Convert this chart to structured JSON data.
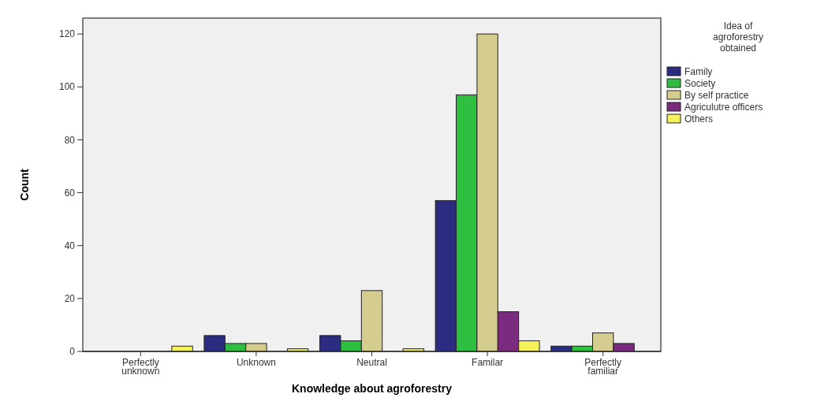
{
  "chart_data": {
    "type": "bar",
    "xlabel": "Knowledge about agroforestry",
    "ylabel": "Count",
    "legend_title": "Idea of agroforestry obtained",
    "categories": [
      "Perfectly unknown",
      "Unknown",
      "Neutral",
      "Familar",
      "Perfectly familiar"
    ],
    "series": [
      {
        "name": "Family",
        "color": "#2b2b80",
        "values": [
          0,
          6,
          6,
          57,
          2
        ]
      },
      {
        "name": "Society",
        "color": "#2fbf40",
        "values": [
          0,
          3,
          4,
          97,
          2
        ]
      },
      {
        "name": "By self practice",
        "color": "#d5cd90",
        "values": [
          0,
          3,
          23,
          120,
          7
        ]
      },
      {
        "name": "Agriculutre officers",
        "color": "#7a2a7f",
        "values": [
          0,
          0,
          0,
          15,
          3
        ]
      },
      {
        "name": "Others",
        "color": "#f5f15a",
        "values": [
          2,
          1,
          1,
          4,
          0
        ]
      }
    ],
    "ylim": [
      0,
      126
    ],
    "yticks": [
      0,
      20,
      40,
      60,
      80,
      100,
      120
    ],
    "legend": "right",
    "grid": false
  }
}
